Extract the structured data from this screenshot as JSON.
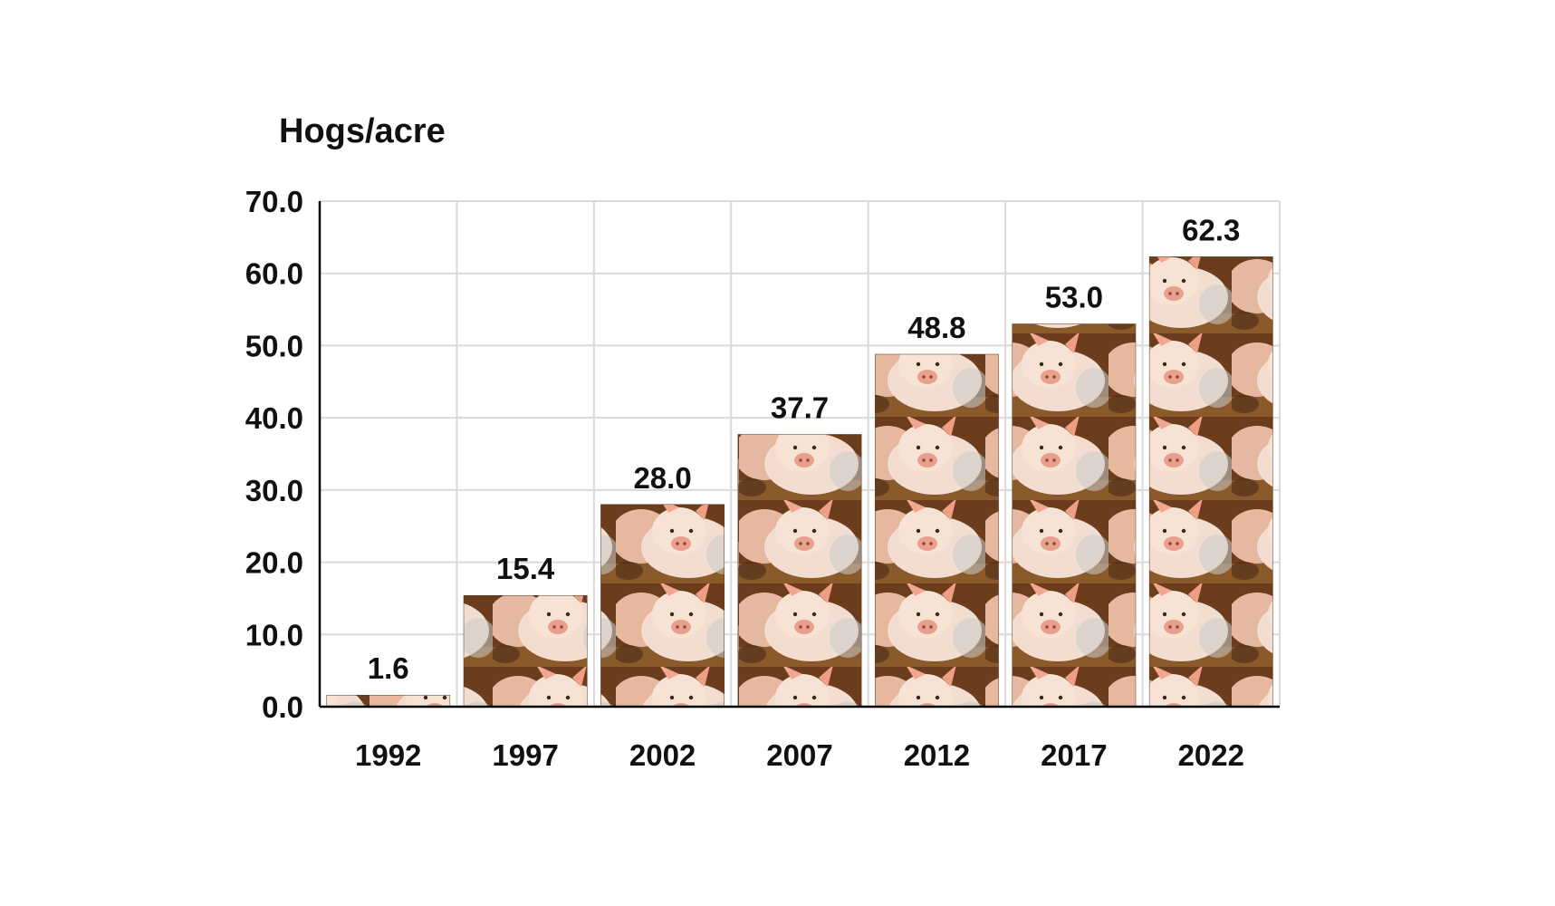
{
  "chart_data": {
    "type": "bar",
    "ylabel": "Hogs/acre",
    "categories": [
      "1992",
      "1997",
      "2002",
      "2007",
      "2012",
      "2017",
      "2022"
    ],
    "values": [
      1.6,
      15.4,
      28.0,
      37.7,
      48.8,
      53.0,
      62.3
    ],
    "data_labels": [
      "1.6",
      "15.4",
      "28.0",
      "37.7",
      "48.8",
      "53.0",
      "62.3"
    ],
    "ylim": [
      0,
      70
    ],
    "yticks": [
      "0.0",
      "10.0",
      "20.0",
      "30.0",
      "40.0",
      "50.0",
      "60.0",
      "70.0"
    ],
    "grid": true,
    "legend": "none",
    "bar_fill": "pig-photo-pattern",
    "colors": {
      "gridline": "#d9d9d9",
      "axis": "#000000",
      "bar_bg": "#6b3d1c"
    }
  }
}
